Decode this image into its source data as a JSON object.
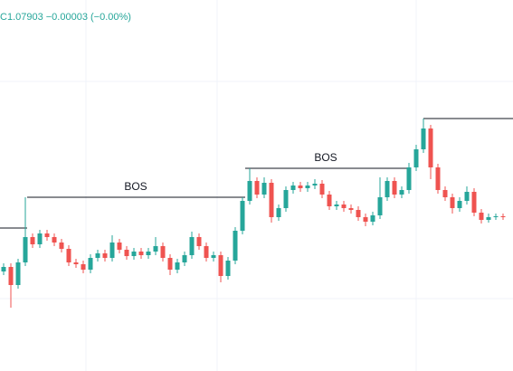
{
  "chart_data": {
    "type": "candlestick",
    "header": "C1.07903  −0.00003 (−0.00%)",
    "ylim": [
      1.07563,
      1.08383
    ],
    "up_color": "#26a69a",
    "down_color": "#ef5350",
    "ohlc": [
      [
        1.07783,
        1.07801,
        1.07775,
        1.07793
      ],
      [
        1.07793,
        1.07801,
        1.07703,
        1.07753
      ],
      [
        1.07753,
        1.07811,
        1.07745,
        1.07803
      ],
      [
        1.07803,
        1.07947,
        1.07795,
        1.07859
      ],
      [
        1.07859,
        1.07867,
        1.07835,
        1.07843
      ],
      [
        1.07843,
        1.07875,
        1.07835,
        1.07867
      ],
      [
        1.07867,
        1.07875,
        1.07851,
        1.07859
      ],
      [
        1.07859,
        1.07867,
        1.07839,
        1.07847
      ],
      [
        1.07847,
        1.07855,
        1.07825,
        1.07833
      ],
      [
        1.07833,
        1.07841,
        1.07795,
        1.07803
      ],
      [
        1.07803,
        1.07811,
        1.07791,
        1.07799
      ],
      [
        1.07799,
        1.07807,
        1.07779,
        1.07787
      ],
      [
        1.07787,
        1.07821,
        1.07779,
        1.07813
      ],
      [
        1.07813,
        1.07831,
        1.07805,
        1.07823
      ],
      [
        1.07823,
        1.07831,
        1.07805,
        1.07813
      ],
      [
        1.07813,
        1.07863,
        1.07805,
        1.07847
      ],
      [
        1.07847,
        1.07855,
        1.07823,
        1.07831
      ],
      [
        1.07831,
        1.07839,
        1.07809,
        1.07817
      ],
      [
        1.07817,
        1.07835,
        1.07809,
        1.07827
      ],
      [
        1.07827,
        1.07835,
        1.07811,
        1.07819
      ],
      [
        1.07819,
        1.07835,
        1.07811,
        1.07827
      ],
      [
        1.07827,
        1.07859,
        1.07819,
        1.07839
      ],
      [
        1.07839,
        1.07847,
        1.07805,
        1.07813
      ],
      [
        1.07813,
        1.07821,
        1.07775,
        1.07787
      ],
      [
        1.07787,
        1.07811,
        1.07779,
        1.07803
      ],
      [
        1.07803,
        1.07827,
        1.07795,
        1.07819
      ],
      [
        1.07819,
        1.07871,
        1.07811,
        1.07859
      ],
      [
        1.07859,
        1.07867,
        1.07831,
        1.07839
      ],
      [
        1.07839,
        1.07847,
        1.07805,
        1.07813
      ],
      [
        1.07813,
        1.07827,
        1.07805,
        1.07819
      ],
      [
        1.07819,
        1.07827,
        1.07759,
        1.07773
      ],
      [
        1.07773,
        1.07815,
        1.07765,
        1.07807
      ],
      [
        1.07807,
        1.07881,
        1.07799,
        1.07873
      ],
      [
        1.07873,
        1.07947,
        1.07865,
        1.07939
      ],
      [
        1.07939,
        1.08011,
        1.07931,
        1.07983
      ],
      [
        1.07983,
        1.07991,
        1.07945,
        1.07953
      ],
      [
        1.07953,
        1.07991,
        1.07945,
        1.07979
      ],
      [
        1.07979,
        1.07987,
        1.07891,
        1.07903
      ],
      [
        1.07903,
        1.07931,
        1.07895,
        1.07923
      ],
      [
        1.07923,
        1.07971,
        1.07915,
        1.07963
      ],
      [
        1.07963,
        1.07981,
        1.07955,
        1.07973
      ],
      [
        1.07973,
        1.07981,
        1.07959,
        1.07967
      ],
      [
        1.07967,
        1.07981,
        1.07959,
        1.07973
      ],
      [
        1.07973,
        1.07987,
        1.07965,
        1.07977
      ],
      [
        1.07977,
        1.07985,
        1.07945,
        1.07953
      ],
      [
        1.07953,
        1.07961,
        1.07919,
        1.07927
      ],
      [
        1.07927,
        1.07939,
        1.07919,
        1.07931
      ],
      [
        1.07931,
        1.07939,
        1.07915,
        1.07923
      ],
      [
        1.07923,
        1.07931,
        1.07911,
        1.07919
      ],
      [
        1.07919,
        1.07927,
        1.07895,
        1.07903
      ],
      [
        1.07903,
        1.07911,
        1.07883,
        1.07893
      ],
      [
        1.07893,
        1.07915,
        1.07885,
        1.07907
      ],
      [
        1.07907,
        1.07991,
        1.07899,
        1.07947
      ],
      [
        1.07947,
        1.07991,
        1.07939,
        1.07983
      ],
      [
        1.07983,
        1.07991,
        1.07945,
        1.07953
      ],
      [
        1.07953,
        1.07971,
        1.07945,
        1.07963
      ],
      [
        1.07963,
        1.08023,
        1.07955,
        1.08013
      ],
      [
        1.08013,
        1.08063,
        1.08005,
        1.08053
      ],
      [
        1.08053,
        1.08121,
        1.08045,
        1.08099
      ],
      [
        1.08099,
        1.08107,
        1.07987,
        1.08013
      ],
      [
        1.08013,
        1.08021,
        1.07955,
        1.07963
      ],
      [
        1.07963,
        1.07971,
        1.07939,
        1.07947
      ],
      [
        1.07947,
        1.07955,
        1.07911,
        1.07923
      ],
      [
        1.07923,
        1.07947,
        1.07915,
        1.07939
      ],
      [
        1.07939,
        1.07971,
        1.07931,
        1.07959
      ],
      [
        1.07959,
        1.07967,
        1.07905,
        1.07913
      ],
      [
        1.07913,
        1.07921,
        1.07889,
        1.07897
      ],
      [
        1.07897,
        1.07911,
        1.07891,
        1.07903
      ],
      [
        1.07903,
        1.07911,
        1.07897,
        1.07905
      ],
      [
        1.07905,
        1.07911,
        1.07897,
        1.07903
      ]
    ],
    "levels": [
      1.07879,
      1.07947,
      1.08011,
      1.08121
    ],
    "annotations": [
      "BOS",
      "BOS"
    ]
  }
}
